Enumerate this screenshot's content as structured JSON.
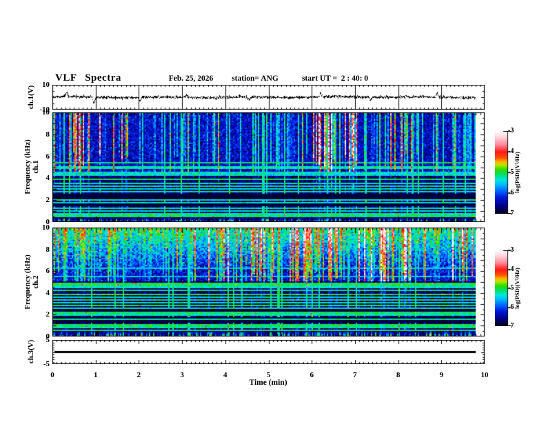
{
  "title": "VLF Spectra",
  "header": {
    "date": "Feb. 25, 2026",
    "station": "station= ANG",
    "start_ut": "start UT =  2 : 40: 0"
  },
  "time_axis": {
    "label": "Time (min)",
    "min": 0,
    "max": 10,
    "major_ticks": [
      0,
      1,
      2,
      3,
      4,
      5,
      6,
      7,
      8,
      9,
      10
    ],
    "minor_step": 0.1,
    "data_end_min": 9.8
  },
  "colorbars": [
    {
      "label": "log(PSD)(V²/Hz)",
      "min": -7,
      "max": -3,
      "ticks": [
        -3,
        -4,
        -5,
        -6,
        -7
      ]
    },
    {
      "label": "log(PSD)(V²/Hz)",
      "min": -7,
      "max": -3,
      "ticks": [
        -3,
        -4,
        -5,
        -6,
        -7
      ]
    }
  ],
  "colormap_stops": [
    [
      -7,
      "#000012"
    ],
    [
      -6.6,
      "#000085"
    ],
    [
      -6.2,
      "#0018d8"
    ],
    [
      -5.9,
      "#0060ff"
    ],
    [
      -5.6,
      "#00b4ff"
    ],
    [
      -5.35,
      "#00e8e0"
    ],
    [
      -5.1,
      "#00e070"
    ],
    [
      -4.85,
      "#30dc00"
    ],
    [
      -4.62,
      "#b8e800"
    ],
    [
      -4.47,
      "#ffb000"
    ],
    [
      -4.28,
      "#ff5000"
    ],
    [
      -4.0,
      "#ff1818"
    ],
    [
      -3.65,
      "#ff8898"
    ],
    [
      -3.3,
      "#ffd0d8"
    ],
    [
      -3,
      "#ffffff"
    ]
  ],
  "chart_data": [
    {
      "type": "line",
      "name": "ch.1 voltage waveform",
      "ylabel": "ch.1(V)",
      "ylim": [
        -10,
        10
      ],
      "ytick_labels": [
        {
          "v": 10,
          "label": "10"
        },
        {
          "v": -10,
          "label": "-10"
        }
      ],
      "signal": {
        "kind": "noise",
        "seed": 20260225,
        "sigma": 0.85,
        "spikes": [
          {
            "t": 0.33,
            "v": 3.4
          },
          {
            "t": 0.95,
            "v": -5.2
          },
          {
            "t": 2.02,
            "v": -3.2
          },
          {
            "t": 3.1,
            "v": 2.8
          },
          {
            "t": 4.55,
            "v": -3.0
          },
          {
            "t": 6.2,
            "v": 3.0
          },
          {
            "t": 7.35,
            "v": -2.8
          },
          {
            "t": 8.9,
            "v": 3.2
          }
        ]
      }
    },
    {
      "type": "heatmap",
      "name": "ch.1 VLF spectrogram",
      "ylabel_lines": [
        "ch.1",
        "Frequency (kHz)"
      ],
      "ylim": [
        0,
        10
      ],
      "ytick_labels": [
        {
          "v": 0,
          "label": "0"
        },
        {
          "v": 2,
          "label": "2"
        },
        {
          "v": 4,
          "label": "4"
        },
        {
          "v": 6,
          "label": "6"
        },
        {
          "v": 8,
          "label": "8"
        },
        {
          "v": 10,
          "label": "10"
        }
      ],
      "value_range": [
        -7,
        -3
      ],
      "gen": {
        "seed": 11,
        "streak_density": 0.55,
        "streak_low_factor": 0.3,
        "split_khz": 4.6,
        "upper_base": -6.35,
        "lower_base": -6.72,
        "top_ramp": null,
        "bright_bands": [
          [
            4.25,
            4.6,
            -5.35
          ]
        ],
        "dark_bands": [
          [
            2.15,
            2.65
          ],
          [
            1.45,
            1.72
          ],
          [
            0.42,
            0.56
          ]
        ],
        "hlines": [
          [
            5.45,
            -5.1
          ],
          [
            5.0,
            -5.25
          ],
          [
            3.95,
            -5.05
          ],
          [
            3.6,
            -5.3
          ],
          [
            3.32,
            -5.2
          ],
          [
            3.05,
            -5.35
          ],
          [
            2.8,
            -5.2
          ],
          [
            2.05,
            -5.25
          ],
          [
            1.85,
            -5.35
          ],
          [
            1.3,
            -5.2
          ],
          [
            1.05,
            -5.35
          ],
          [
            0.85,
            -5.2
          ],
          [
            0.62,
            -5.1
          ]
        ],
        "grass_top": 0.45
      }
    },
    {
      "type": "heatmap",
      "name": "ch.2 VLF spectrogram",
      "ylabel_lines": [
        "ch.2",
        "Frequency (kHz)"
      ],
      "ylim": [
        0,
        10
      ],
      "ytick_labels": [
        {
          "v": 0,
          "label": "0"
        },
        {
          "v": 2,
          "label": "2"
        },
        {
          "v": 4,
          "label": "4"
        },
        {
          "v": 6,
          "label": "6"
        },
        {
          "v": 8,
          "label": "8"
        },
        {
          "v": 10,
          "label": "10"
        }
      ],
      "value_range": [
        -7,
        -3
      ],
      "gen": {
        "seed": 22,
        "streak_density": 0.6,
        "streak_low_factor": 0.28,
        "split_khz": 5.0,
        "upper_base": -6.35,
        "lower_base": -6.8,
        "top_ramp": [
          6.0,
          -6.3,
          1.15
        ],
        "bright_bands": [],
        "dark_bands": [
          [
            2.3,
            2.55
          ],
          [
            1.25,
            1.8
          ],
          [
            0.4,
            0.56
          ]
        ],
        "hlines": [
          [
            6.25,
            -5.45
          ],
          [
            5.5,
            -5.5
          ],
          [
            4.8,
            -5.0
          ],
          [
            4.55,
            -5.3
          ],
          [
            4.28,
            -5.15
          ],
          [
            3.9,
            -4.95
          ],
          [
            3.62,
            -5.3
          ],
          [
            3.35,
            -5.15
          ],
          [
            3.1,
            -5.3
          ],
          [
            2.88,
            -5.05
          ],
          [
            2.62,
            -5.3
          ],
          [
            2.15,
            -5.1
          ],
          [
            1.93,
            -5.3
          ],
          [
            1.6,
            -5.2
          ],
          [
            1.02,
            -5.05
          ],
          [
            0.8,
            -5.3
          ],
          [
            0.58,
            -5.1
          ]
        ],
        "grass_top": 0.5
      }
    },
    {
      "type": "line",
      "name": "ch.3 voltage waveform",
      "ylabel": "ch.3(V)",
      "ylim": [
        -5,
        5
      ],
      "ytick_labels": [
        {
          "v": 5,
          "label": "5"
        },
        {
          "v": -5,
          "label": "-5"
        }
      ],
      "signal": {
        "kind": "flat",
        "value": 0,
        "half_width_v": 0.55,
        "t_start": 0.05,
        "t_end": 9.8
      }
    }
  ]
}
